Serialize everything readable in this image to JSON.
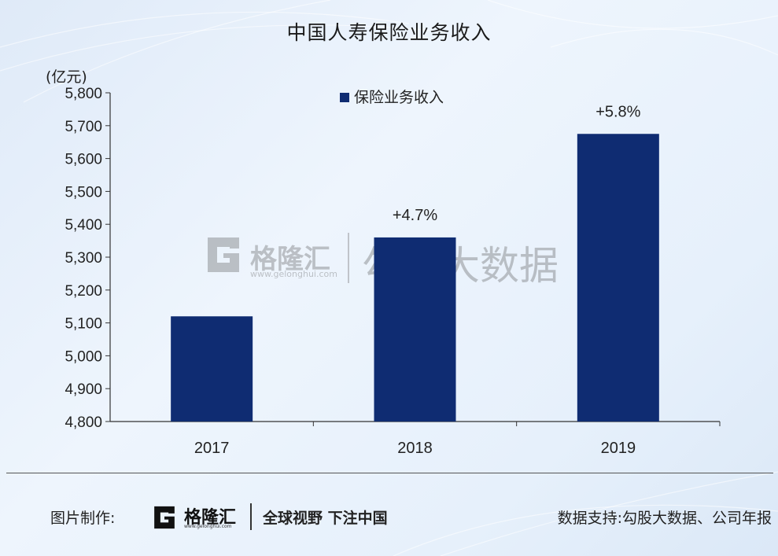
{
  "chart_data": {
    "type": "bar",
    "title": "中国人寿保险业务收入",
    "unit_label": "(亿元)",
    "categories": [
      "2017",
      "2018",
      "2019"
    ],
    "series": [
      {
        "name": "保险业务收入",
        "values": [
          5120,
          5360,
          5675
        ],
        "color": "#0f2c72"
      }
    ],
    "annotations": [
      "",
      "+4.7%",
      "+5.8%"
    ],
    "ylim": [
      4800,
      5800
    ],
    "yticks": [
      "4,800",
      "4,900",
      "5,000",
      "5,100",
      "5,200",
      "5,300",
      "5,400",
      "5,500",
      "5,600",
      "5,700",
      "5,800"
    ],
    "legend_position": "top-center",
    "grid": false
  },
  "watermark": {
    "brand": "格隆汇",
    "site": "www.gelonghui.com",
    "product": "勾股大数据"
  },
  "footer": {
    "made_label": "图片制作:",
    "logo_text": "格隆汇",
    "logo_site": "www.gelonghui.com",
    "slogan": "全球视野 下注中国",
    "source": "数据支持:勾股大数据、公司年报"
  }
}
